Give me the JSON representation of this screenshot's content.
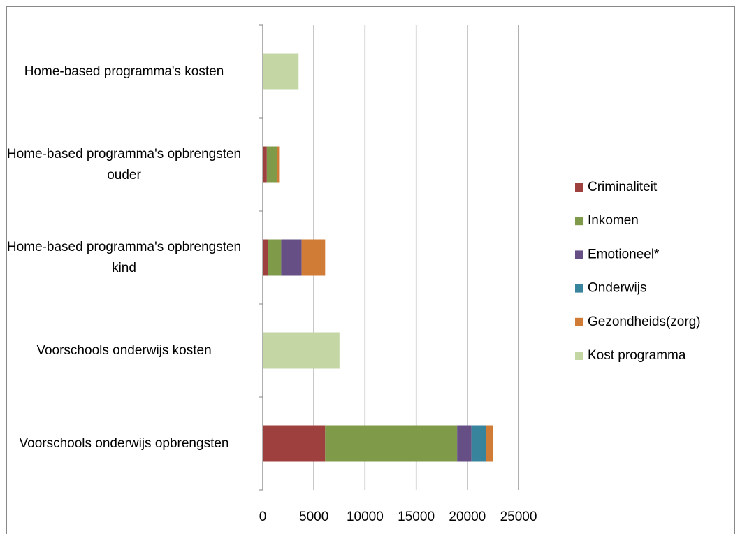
{
  "chart_data": {
    "type": "stacked-barh",
    "categories": [
      "Home-based programma's kosten",
      "Home-based programma's opbrengsten ouder",
      "Home-based programma's opbrengsten kind",
      "Voorschools onderwijs kosten",
      "Voorschools onderwijs opbrengsten"
    ],
    "series": [
      {
        "name": "Criminaliteit",
        "color": "#9e413e",
        "values": [
          0,
          400,
          500,
          0,
          6100
        ]
      },
      {
        "name": "Inkomen",
        "color": "#7f9a48",
        "values": [
          0,
          1000,
          1300,
          0,
          12900
        ]
      },
      {
        "name": "Emotioneel*",
        "color": "#664f85",
        "values": [
          0,
          0,
          2000,
          0,
          1400
        ]
      },
      {
        "name": "Onderwijs",
        "color": "#38849d",
        "values": [
          0,
          0,
          0,
          0,
          1400
        ]
      },
      {
        "name": "Gezondheids(zorg)",
        "color": "#d07b36",
        "values": [
          0,
          200,
          2300,
          0,
          700
        ]
      },
      {
        "name": "Kost programma",
        "color": "#c3d6a4",
        "values": [
          3500,
          0,
          0,
          7500,
          0
        ]
      }
    ],
    "xlim": [
      0,
      25000
    ],
    "xticks": [
      0,
      5000,
      10000,
      15000,
      20000,
      25000
    ],
    "grid": true,
    "legend": "right"
  }
}
